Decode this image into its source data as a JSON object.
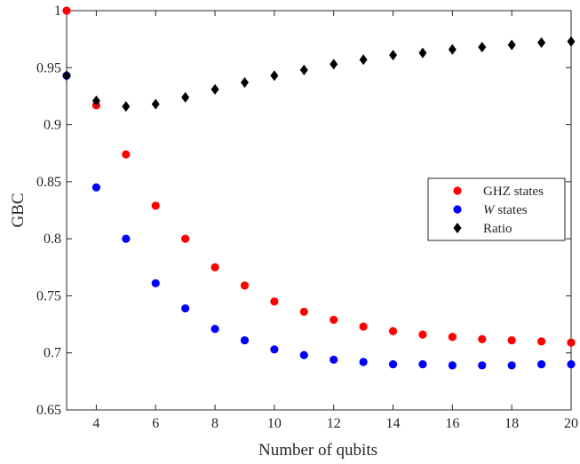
{
  "chart_data": {
    "type": "scatter",
    "xlabel": "Number of qubits",
    "ylabel": "GBC",
    "xlim": [
      3,
      20
    ],
    "ylim": [
      0.65,
      1.0
    ],
    "xticks": [
      4,
      6,
      8,
      10,
      12,
      14,
      16,
      18,
      20
    ],
    "yticks": [
      0.65,
      0.7,
      0.75,
      0.8,
      0.85,
      0.9,
      0.95,
      1
    ],
    "ytick_labels": [
      "0.65",
      "0.7",
      "0.75",
      "0.8",
      "0.85",
      "0.9",
      "0.95",
      "1"
    ],
    "grid": false,
    "legend_position": "right",
    "series": [
      {
        "name": "GHZ states",
        "name_prefix": "",
        "name_italic": "",
        "name_suffix": "GHZ states",
        "marker": "circle",
        "color": "#ff0000",
        "x": [
          3,
          4,
          5,
          6,
          7,
          8,
          9,
          10,
          11,
          12,
          13,
          14,
          15,
          16,
          17,
          18,
          19,
          20
        ],
        "values": [
          1.0,
          0.917,
          0.874,
          0.829,
          0.8,
          0.775,
          0.759,
          0.745,
          0.736,
          0.729,
          0.723,
          0.719,
          0.716,
          0.714,
          0.712,
          0.711,
          0.71,
          0.709
        ]
      },
      {
        "name": "W states",
        "name_prefix": "",
        "name_italic": "W",
        "name_suffix": " states",
        "marker": "circle",
        "color": "#0000ff",
        "x": [
          3,
          4,
          5,
          6,
          7,
          8,
          9,
          10,
          11,
          12,
          13,
          14,
          15,
          16,
          17,
          18,
          19,
          20
        ],
        "values": [
          0.943,
          0.845,
          0.8,
          0.761,
          0.739,
          0.721,
          0.711,
          0.703,
          0.698,
          0.694,
          0.692,
          0.69,
          0.69,
          0.689,
          0.689,
          0.689,
          0.69,
          0.69
        ]
      },
      {
        "name": "Ratio",
        "name_prefix": "",
        "name_italic": "",
        "name_suffix": "Ratio",
        "marker": "diamond",
        "color": "#000000",
        "x": [
          3,
          4,
          5,
          6,
          7,
          8,
          9,
          10,
          11,
          12,
          13,
          14,
          15,
          16,
          17,
          18,
          19,
          20
        ],
        "values": [
          0.943,
          0.921,
          0.916,
          0.918,
          0.924,
          0.931,
          0.937,
          0.943,
          0.948,
          0.953,
          0.957,
          0.961,
          0.963,
          0.966,
          0.968,
          0.97,
          0.972,
          0.973
        ]
      }
    ]
  }
}
